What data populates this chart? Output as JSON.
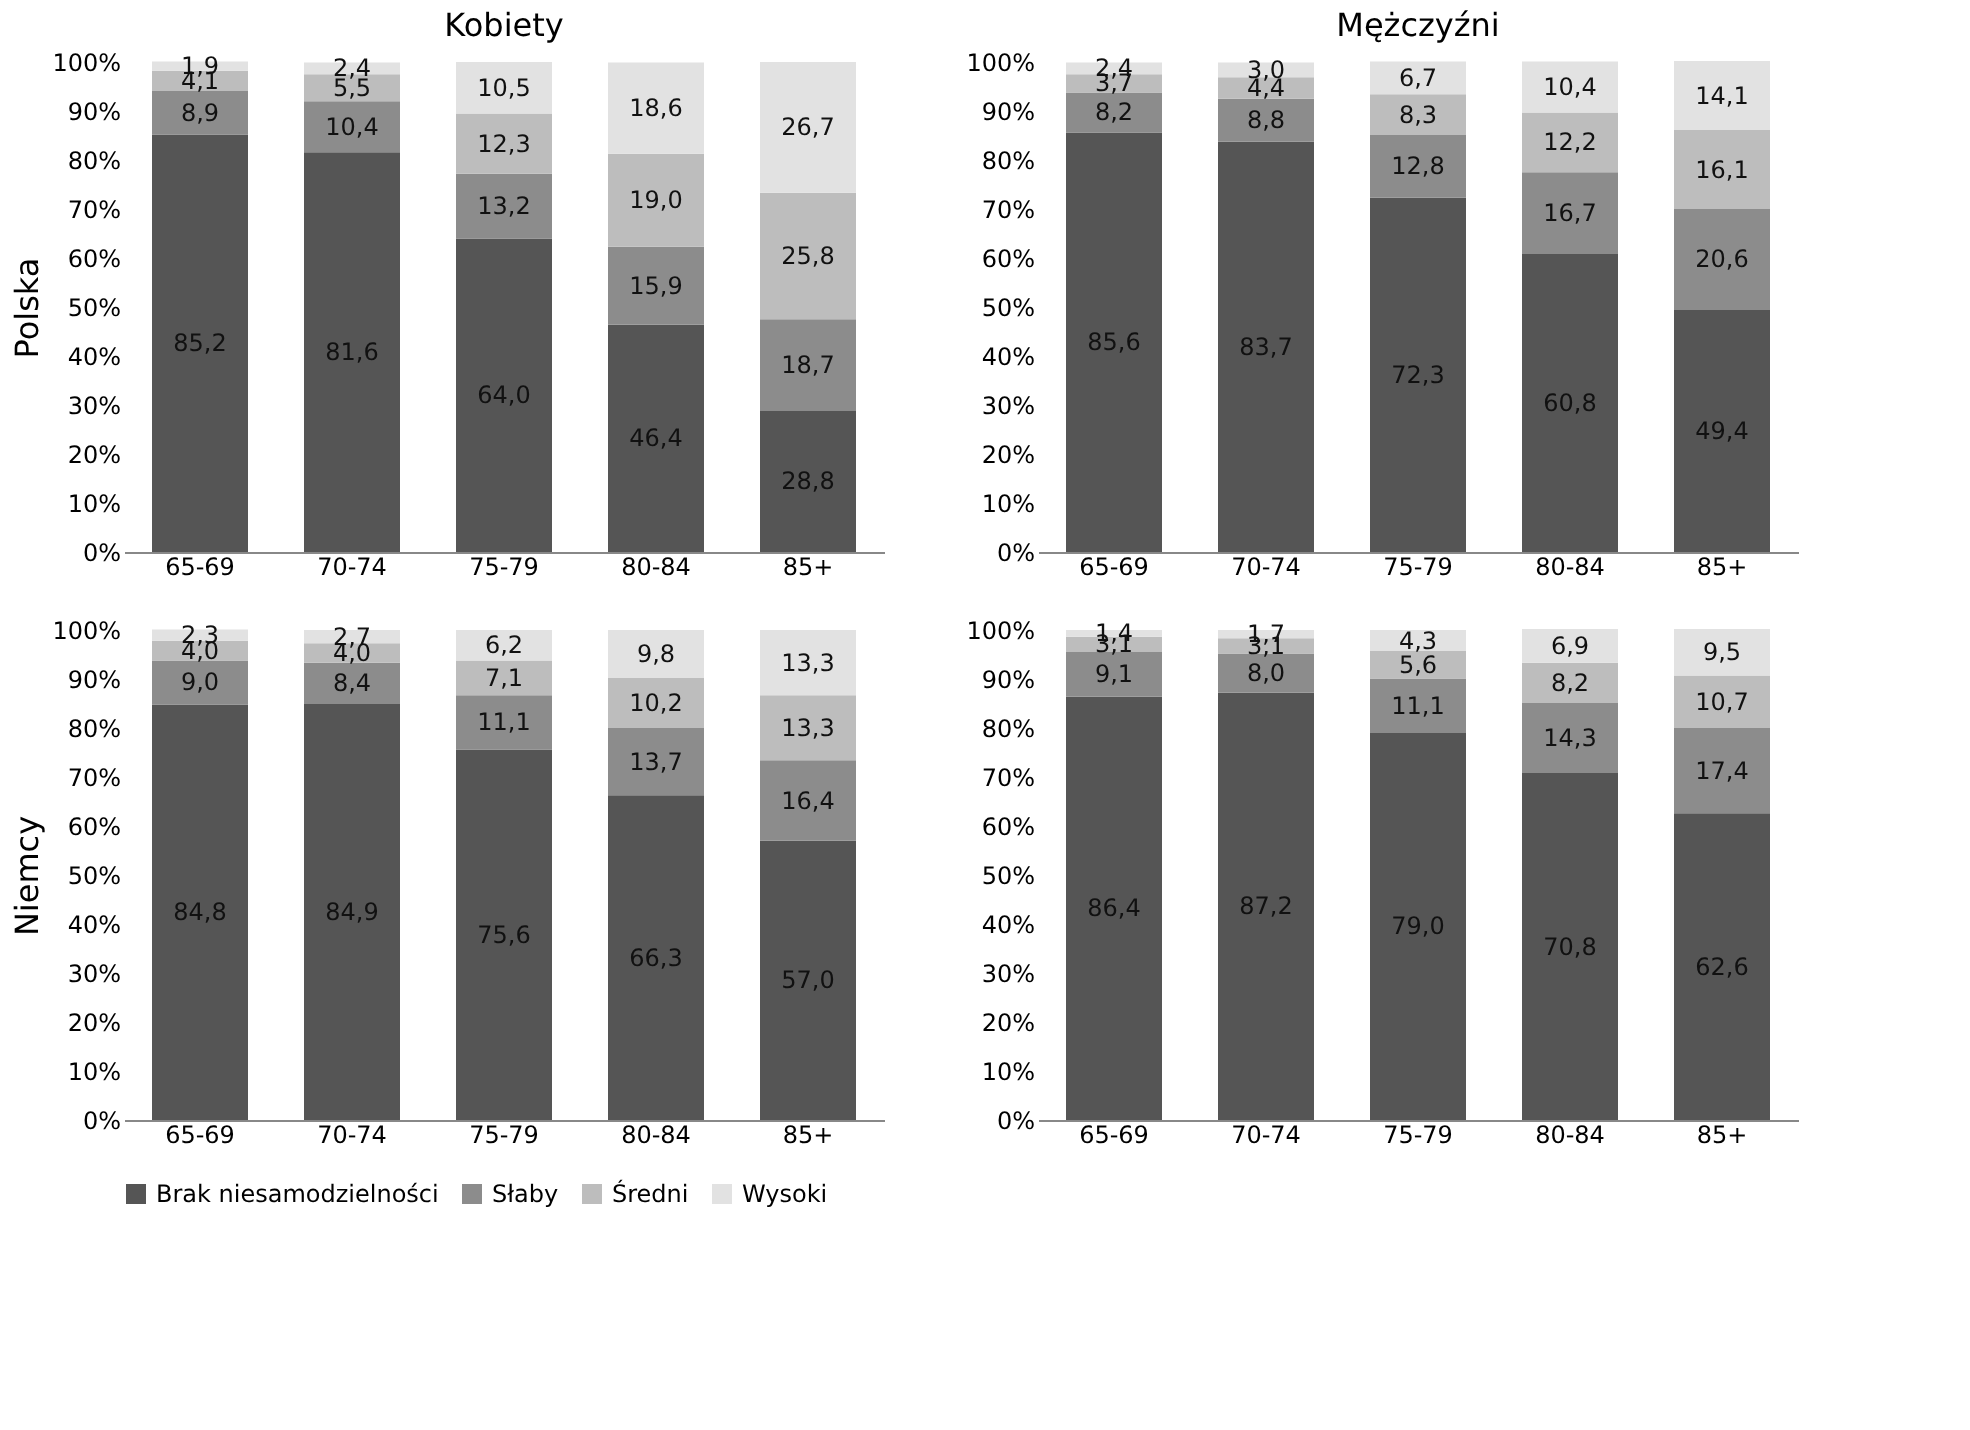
{
  "chart_data": [
    {
      "type": "bar",
      "stacked": true,
      "legend": "bottom",
      "title": "Kobiety",
      "ylabel": "Polska",
      "categories": [
        "65-69",
        "70-74",
        "75-79",
        "80-84",
        "85+"
      ],
      "ylim": [
        0,
        100
      ],
      "yticks": [
        {
          "value": 0,
          "label": "0%"
        },
        {
          "value": 10,
          "label": "10%"
        },
        {
          "value": 20,
          "label": "20%"
        },
        {
          "value": 30,
          "label": "30%"
        },
        {
          "value": 40,
          "label": "40%"
        },
        {
          "value": 50,
          "label": "50%"
        },
        {
          "value": 60,
          "label": "60%"
        },
        {
          "value": 70,
          "label": "70%"
        },
        {
          "value": 80,
          "label": "80%"
        },
        {
          "value": 90,
          "label": "90%"
        },
        {
          "value": 100,
          "label": "100%"
        }
      ],
      "series": [
        {
          "name": "Brak niesamodzielności",
          "color": "#555555",
          "values": [
            85.2,
            81.6,
            64.0,
            46.4,
            28.8
          ],
          "value_labels": [
            "85,2",
            "81,6",
            "64,0",
            "46,4",
            "28,8"
          ]
        },
        {
          "name": "Słaby",
          "color": "#8c8c8c",
          "values": [
            8.9,
            10.4,
            13.2,
            15.9,
            18.7
          ],
          "value_labels": [
            "8,9",
            "10,4",
            "13,2",
            "15,9",
            "18,7"
          ]
        },
        {
          "name": "Średni",
          "color": "#bdbdbd",
          "values": [
            4.1,
            5.5,
            12.3,
            19.0,
            25.8
          ],
          "value_labels": [
            "4,1",
            "5,5",
            "12,3",
            "19,0",
            "25,8"
          ]
        },
        {
          "name": "Wysoki",
          "color": "#e2e2e2",
          "values": [
            1.9,
            2.4,
            10.5,
            18.6,
            26.7
          ],
          "value_labels": [
            "1,9",
            "2,4",
            "10,5",
            "18,6",
            "26,7"
          ]
        }
      ]
    },
    {
      "type": "bar",
      "stacked": true,
      "title": "Mężczyźni",
      "categories": [
        "65-69",
        "70-74",
        "75-79",
        "80-84",
        "85+"
      ],
      "ylim": [
        0,
        100
      ],
      "yticks": [
        {
          "value": 0,
          "label": "0%"
        },
        {
          "value": 10,
          "label": "10%"
        },
        {
          "value": 20,
          "label": "20%"
        },
        {
          "value": 30,
          "label": "30%"
        },
        {
          "value": 40,
          "label": "40%"
        },
        {
          "value": 50,
          "label": "50%"
        },
        {
          "value": 60,
          "label": "60%"
        },
        {
          "value": 70,
          "label": "70%"
        },
        {
          "value": 80,
          "label": "80%"
        },
        {
          "value": 90,
          "label": "90%"
        },
        {
          "value": 100,
          "label": "100%"
        }
      ],
      "series": [
        {
          "name": "Brak niesamodzielności",
          "color": "#555555",
          "values": [
            85.6,
            83.7,
            72.3,
            60.8,
            49.4
          ],
          "value_labels": [
            "85,6",
            "83,7",
            "72,3",
            "60,8",
            "49,4"
          ]
        },
        {
          "name": "Słaby",
          "color": "#8c8c8c",
          "values": [
            8.2,
            8.8,
            12.8,
            16.7,
            20.6
          ],
          "value_labels": [
            "8,2",
            "8,8",
            "12,8",
            "16,7",
            "20,6"
          ]
        },
        {
          "name": "Średni",
          "color": "#bdbdbd",
          "values": [
            3.7,
            4.4,
            8.3,
            12.2,
            16.1
          ],
          "value_labels": [
            "3,7",
            "4,4",
            "8,3",
            "12,2",
            "16,1"
          ]
        },
        {
          "name": "Wysoki",
          "color": "#e2e2e2",
          "values": [
            2.4,
            3.0,
            6.7,
            10.4,
            14.1
          ],
          "value_labels": [
            "2,4",
            "3,0",
            "6,7",
            "10,4",
            "14,1"
          ]
        }
      ]
    },
    {
      "type": "bar",
      "stacked": true,
      "ylabel": "Niemcy",
      "categories": [
        "65-69",
        "70-74",
        "75-79",
        "80-84",
        "85+"
      ],
      "ylim": [
        0,
        100
      ],
      "yticks": [
        {
          "value": 0,
          "label": "0%"
        },
        {
          "value": 10,
          "label": "10%"
        },
        {
          "value": 20,
          "label": "20%"
        },
        {
          "value": 30,
          "label": "30%"
        },
        {
          "value": 40,
          "label": "40%"
        },
        {
          "value": 50,
          "label": "50%"
        },
        {
          "value": 60,
          "label": "60%"
        },
        {
          "value": 70,
          "label": "70%"
        },
        {
          "value": 80,
          "label": "80%"
        },
        {
          "value": 90,
          "label": "90%"
        },
        {
          "value": 100,
          "label": "100%"
        }
      ],
      "series": [
        {
          "name": "Brak niesamodzielności",
          "color": "#555555",
          "values": [
            84.8,
            84.9,
            75.6,
            66.3,
            57.0
          ],
          "value_labels": [
            "84,8",
            "84,9",
            "75,6",
            "66,3",
            "57,0"
          ]
        },
        {
          "name": "Słaby",
          "color": "#8c8c8c",
          "values": [
            9.0,
            8.4,
            11.1,
            13.7,
            16.4
          ],
          "value_labels": [
            "9,0",
            "8,4",
            "11,1",
            "13,7",
            "16,4"
          ]
        },
        {
          "name": "Średni",
          "color": "#bdbdbd",
          "values": [
            4.0,
            4.0,
            7.1,
            10.2,
            13.3
          ],
          "value_labels": [
            "4,0",
            "4,0",
            "7,1",
            "10,2",
            "13,3"
          ]
        },
        {
          "name": "Wysoki",
          "color": "#e2e2e2",
          "values": [
            2.3,
            2.7,
            6.2,
            9.8,
            13.3
          ],
          "value_labels": [
            "2,3",
            "2,7",
            "6,2",
            "9,8",
            "13,3"
          ]
        }
      ]
    },
    {
      "type": "bar",
      "stacked": true,
      "categories": [
        "65-69",
        "70-74",
        "75-79",
        "80-84",
        "85+"
      ],
      "ylim": [
        0,
        100
      ],
      "yticks": [
        {
          "value": 0,
          "label": "0%"
        },
        {
          "value": 10,
          "label": "10%"
        },
        {
          "value": 20,
          "label": "20%"
        },
        {
          "value": 30,
          "label": "30%"
        },
        {
          "value": 40,
          "label": "40%"
        },
        {
          "value": 50,
          "label": "50%"
        },
        {
          "value": 60,
          "label": "60%"
        },
        {
          "value": 70,
          "label": "70%"
        },
        {
          "value": 80,
          "label": "80%"
        },
        {
          "value": 90,
          "label": "90%"
        },
        {
          "value": 100,
          "label": "100%"
        }
      ],
      "series": [
        {
          "name": "Brak niesamodzielności",
          "color": "#555555",
          "values": [
            86.4,
            87.2,
            79.0,
            70.8,
            62.6
          ],
          "value_labels": [
            "86,4",
            "87,2",
            "79,0",
            "70,8",
            "62,6"
          ]
        },
        {
          "name": "Słaby",
          "color": "#8c8c8c",
          "values": [
            9.1,
            8.0,
            11.1,
            14.3,
            17.4
          ],
          "value_labels": [
            "9,1",
            "8,0",
            "11,1",
            "14,3",
            "17,4"
          ]
        },
        {
          "name": "Średni",
          "color": "#bdbdbd",
          "values": [
            3.1,
            3.1,
            5.6,
            8.2,
            10.7
          ],
          "value_labels": [
            "3,1",
            "3,1",
            "5,6",
            "8,2",
            "10,7"
          ]
        },
        {
          "name": "Wysoki",
          "color": "#e2e2e2",
          "values": [
            1.4,
            1.7,
            4.3,
            6.9,
            9.5
          ],
          "value_labels": [
            "1,4",
            "1,7",
            "4,3",
            "6,9",
            "9,5"
          ]
        }
      ]
    }
  ]
}
